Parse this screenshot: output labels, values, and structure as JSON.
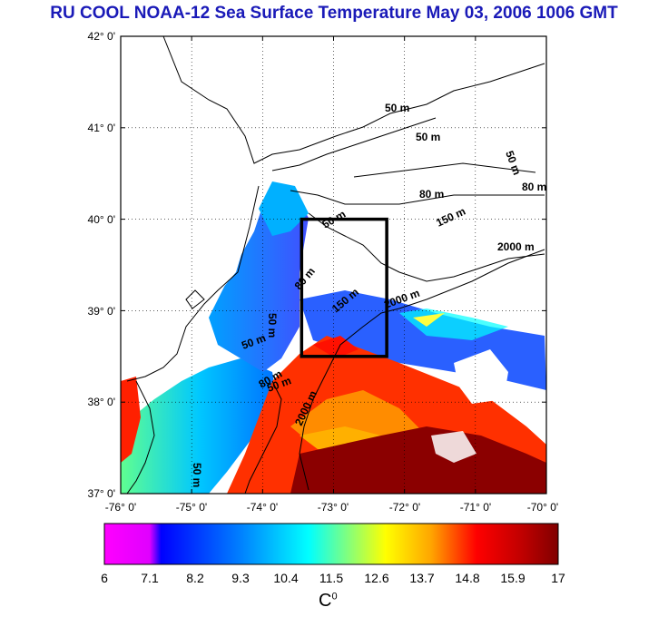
{
  "title": "RU COOL  NOAA-12 Sea Surface Temperature May 03, 2006 1006 GMT",
  "map": {
    "lat_labels": [
      "42° 0'",
      "41° 0'",
      "40° 0'",
      "39° 0'",
      "38° 0'",
      "37° 0'"
    ],
    "lon_labels": [
      "-76° 0'",
      "-75° 0'",
      "-74° 0'",
      "-73° 0'",
      "-72° 0'",
      "-71° 0'",
      "-70° 0'"
    ],
    "lat_range": [
      37,
      42
    ],
    "lon_range": [
      -76,
      -70
    ],
    "study_box": {
      "lon": [
        -73.45,
        -72.25
      ],
      "lat": [
        38.5,
        40.0
      ]
    },
    "contour_labels": [
      "50 m",
      "50 m",
      "50 m",
      "80 m",
      "80 m",
      "150 m",
      "50 m",
      "80 m",
      "150 m",
      "2000 m",
      "2000 m",
      "50 m",
      "50 m",
      "80 m",
      "2000 m",
      "50 m",
      "50 m"
    ]
  },
  "colorbar": {
    "ticks": [
      "6",
      "7.1",
      "8.2",
      "9.3",
      "10.4",
      "11.5",
      "12.6",
      "13.7",
      "14.8",
      "15.9",
      "17"
    ],
    "min": 6,
    "max": 17,
    "unit_base": "C",
    "unit_sup": "0",
    "colors": [
      "#ff00ff",
      "#0000ff",
      "#0088ff",
      "#00ffff",
      "#ffff00",
      "#ff8800",
      "#ff0000",
      "#880000"
    ]
  }
}
